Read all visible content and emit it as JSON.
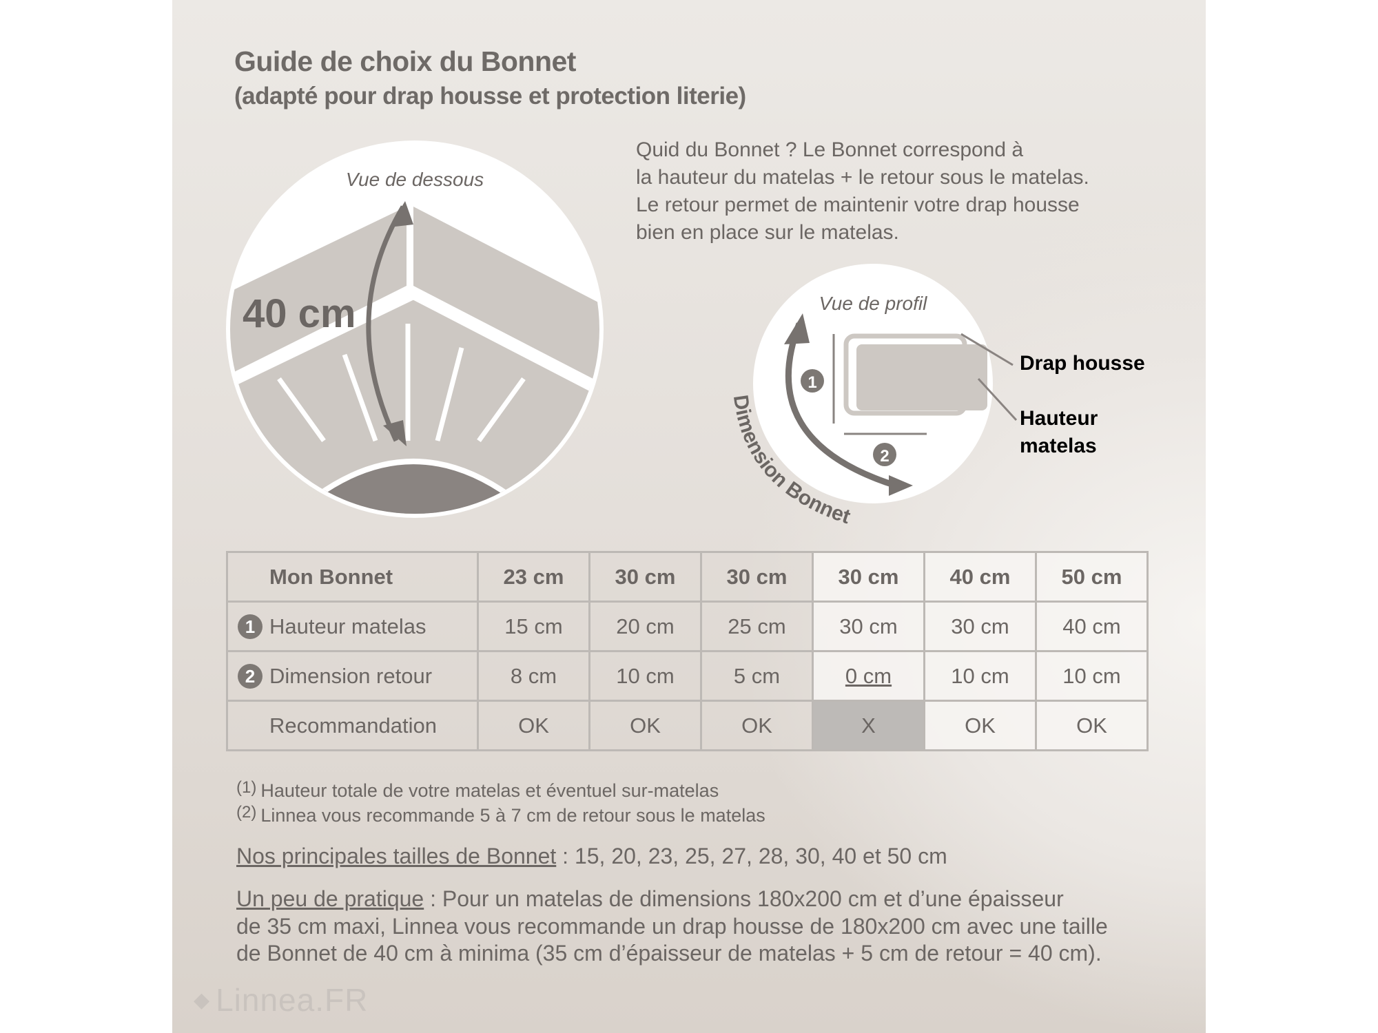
{
  "header": {
    "title": "Guide de choix du Bonnet",
    "subtitle": "(adapté pour drap housse et protection literie)"
  },
  "intro": {
    "lines": [
      "Quid du Bonnet ? Le Bonnet correspond à",
      "la hauteur du matelas + le retour sous le matelas.",
      "Le retour permet de maintenir votre drap housse",
      "bien en place sur le matelas."
    ]
  },
  "illustration_bottom": {
    "caption": "Vue de dessous",
    "measure": "40 cm"
  },
  "illustration_profile": {
    "caption": "Vue de profil",
    "marker_1": "1",
    "marker_2": "2",
    "curve_label": "Dimension Bonnet",
    "label_drap": "Drap housse",
    "label_hauteur_1": "Hauteur",
    "label_hauteur_2": "matelas"
  },
  "table": {
    "rows": [
      {
        "label": "Mon Bonnet",
        "marker": "",
        "cells": [
          "23 cm",
          "30 cm",
          "30 cm",
          "30 cm",
          "40 cm",
          "50 cm"
        ]
      },
      {
        "label": "Hauteur matelas",
        "marker": "1",
        "cells": [
          "15 cm",
          "20 cm",
          "25 cm",
          "30 cm",
          "30 cm",
          "40 cm"
        ]
      },
      {
        "label": "Dimension retour",
        "marker": "2",
        "cells": [
          "8 cm",
          "10 cm",
          "5 cm",
          "0 cm",
          "10 cm",
          "10 cm"
        ]
      },
      {
        "label": "Recommandation",
        "marker": "",
        "cells": [
          "OK",
          "OK",
          "OK",
          "X",
          "OK",
          "OK"
        ]
      }
    ]
  },
  "footnotes": [
    {
      "mark": "(1)",
      "text": "Hauteur totale de votre matelas et éventuel sur-matelas"
    },
    {
      "mark": "(2)",
      "text": "Linnea vous recommande 5 à 7 cm de retour sous le matelas"
    }
  ],
  "sizes": {
    "label": "Nos principales tailles de Bonnet",
    "text": " : 15, 20, 23, 25, 27, 28, 30, 40 et 50 cm"
  },
  "practice": {
    "label": "Un peu de pratique",
    "line1": " : Pour un matelas de dimensions 180x200 cm et d’une épaisseur",
    "line2": "de 35 cm maxi, Linnea vous recommande un drap housse de 180x200 cm avec une taille",
    "line3": "de Bonnet de 40 cm à minima (35 cm d’épaisseur de matelas + 5 cm de retour = 40 cm)."
  },
  "logo": {
    "text": "Linnea.FR"
  },
  "colors": {
    "text": "#6b6663",
    "fill": "#cdc8c3",
    "dark": "#7d7874",
    "bad_cell": "#bdbab7"
  }
}
